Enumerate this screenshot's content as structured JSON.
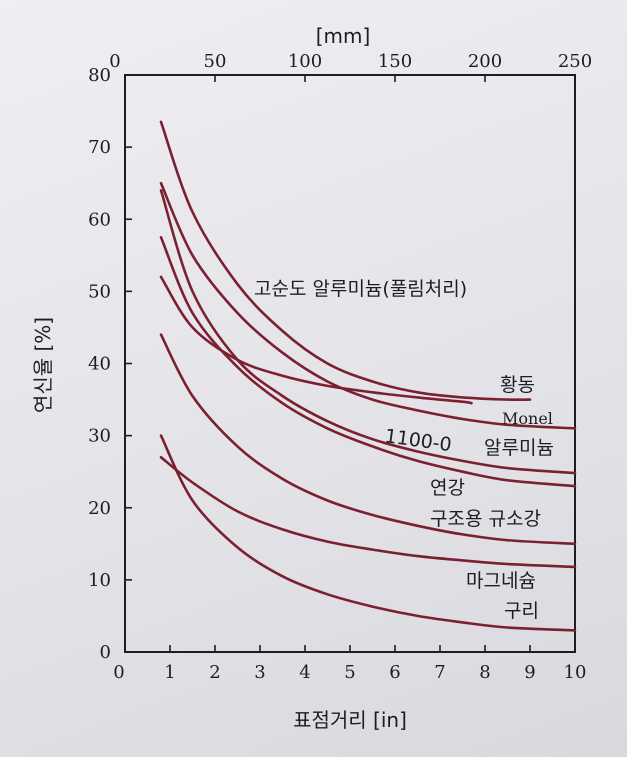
{
  "chart_data": {
    "type": "line",
    "title": "",
    "xlabel": "표점거리 [in]",
    "x2label": "[mm]",
    "ylabel": "연신율 [%]",
    "xlim": [
      0,
      10
    ],
    "ylim": [
      0,
      80
    ],
    "x2lim": [
      0,
      250
    ],
    "xticks": [
      "0",
      "1",
      "2",
      "3",
      "4",
      "5",
      "6",
      "7",
      "8",
      "9",
      "10"
    ],
    "x2ticks": [
      "0",
      "50",
      "100",
      "150",
      "200",
      "250"
    ],
    "yticks": [
      "0",
      "10",
      "20",
      "30",
      "40",
      "50",
      "60",
      "70",
      "80"
    ],
    "grid": false,
    "series": [
      {
        "name": "고순도 알루미늄(풀림처리)",
        "x": [
          0.8,
          1.5,
          2.5,
          3.5,
          4.5,
          5.5,
          6.5,
          7.5,
          8.5,
          9.0
        ],
        "y": [
          73.5,
          61,
          51,
          44.5,
          40,
          37.5,
          36,
          35.3,
          35,
          35
        ]
      },
      {
        "name": "황동",
        "x": [
          0.8,
          1.5,
          2.5,
          3.5,
          4.5,
          5.5,
          6.5,
          7.5,
          7.7
        ],
        "y": [
          52,
          45,
          40.5,
          38.3,
          36.9,
          36,
          35.3,
          34.7,
          34.5
        ]
      },
      {
        "name": "Monel",
        "x": [
          0.8,
          1.5,
          2.5,
          3.5,
          4.5,
          5.5,
          6.5,
          7.5,
          8.5,
          10.0
        ],
        "y": [
          65,
          55,
          47,
          41.5,
          37.5,
          35,
          33.5,
          32.3,
          31.5,
          31
        ]
      },
      {
        "name": "1100-0 알루미늄",
        "x": [
          0.8,
          1.5,
          2.5,
          3.5,
          4.5,
          5.5,
          6.5,
          7.5,
          8.5,
          10.0
        ],
        "y": [
          64,
          50,
          40.5,
          35.5,
          32,
          29.5,
          27.8,
          26.5,
          25.5,
          24.8
        ]
      },
      {
        "name": "연강",
        "x": [
          0.8,
          1.5,
          2.5,
          3.5,
          4.5,
          5.5,
          6.5,
          7.5,
          8.5,
          10.0
        ],
        "y": [
          57.5,
          47,
          39.5,
          34.5,
          31,
          28.5,
          26.5,
          25,
          23.8,
          23
        ]
      },
      {
        "name": "구조용 규소강",
        "x": [
          0.8,
          1.5,
          2.5,
          3.5,
          4.5,
          5.5,
          6.5,
          7.5,
          8.5,
          10.0
        ],
        "y": [
          44,
          35.5,
          28.5,
          24,
          21,
          19,
          17.5,
          16.3,
          15.5,
          15
        ]
      },
      {
        "name": "마그네슘",
        "x": [
          0.8,
          1.5,
          2.5,
          3.5,
          4.5,
          5.5,
          6.5,
          7.5,
          8.5,
          10.0
        ],
        "y": [
          27,
          23.5,
          19.5,
          17,
          15.3,
          14.2,
          13.3,
          12.7,
          12.2,
          11.8
        ]
      },
      {
        "name": "구리",
        "x": [
          0.8,
          1.5,
          2.5,
          3.5,
          4.5,
          5.5,
          6.5,
          7.5,
          8.5,
          10.0
        ],
        "y": [
          30,
          21,
          14.5,
          10.5,
          8,
          6.3,
          5,
          4.1,
          3.4,
          3
        ]
      }
    ],
    "annotations": [
      "고순도 알루미늄(풀림처리)",
      "황동",
      "Monel",
      "1100-0",
      "알루미늄",
      "연강",
      "구조용 규소강",
      "마그네슘",
      "구리"
    ],
    "colors": {
      "curve": "#7b2030",
      "axis": "#1d1d24"
    }
  }
}
